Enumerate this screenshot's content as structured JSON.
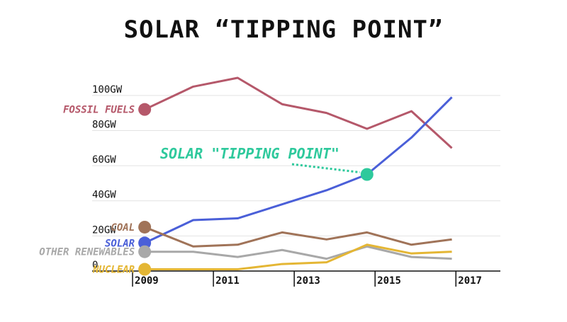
{
  "chart_data": {
    "type": "line",
    "title": "SOLAR “TIPPING POINT”",
    "x": [
      2009,
      2010,
      2011,
      2012,
      2013,
      2014,
      2015,
      2016,
      2017
    ],
    "x_tick_labels": [
      "2009",
      "2011",
      "2013",
      "2015",
      "2017"
    ],
    "x_tick_values": [
      2009,
      2011,
      2013,
      2015,
      2017
    ],
    "y_tick_labels": [
      "0",
      "20GW",
      "40GW",
      "60GW",
      "80GW",
      "100GW"
    ],
    "y_tick_values": [
      0,
      20,
      40,
      60,
      80,
      100
    ],
    "xlim": [
      2008,
      2018.1
    ],
    "ylim": [
      0,
      110
    ],
    "grid": true,
    "series": [
      {
        "name": "FOSSIL FUELS",
        "color": "#b5586a",
        "values": [
          92,
          105,
          110,
          95,
          90,
          81,
          91,
          70
        ],
        "x": [
          2009.3,
          2010.5,
          2011.6,
          2012.7,
          2013.8,
          2014.8,
          2015.9,
          2016.9
        ]
      },
      {
        "name": "SOLAR",
        "color": "#4a5fd8",
        "values": [
          16,
          29,
          30,
          38,
          46,
          55,
          76,
          99
        ],
        "x": [
          2009.3,
          2010.5,
          2011.6,
          2012.7,
          2013.8,
          2014.8,
          2015.9,
          2016.9
        ]
      },
      {
        "name": "COAL",
        "color": "#a07358",
        "values": [
          25,
          14,
          15,
          22,
          18,
          22,
          15,
          18
        ],
        "x": [
          2009.3,
          2010.5,
          2011.6,
          2012.7,
          2013.8,
          2014.8,
          2015.9,
          2016.9
        ]
      },
      {
        "name": "OTHER RENEWABLES",
        "color": "#a8a8a8",
        "values": [
          11,
          11,
          8,
          12,
          7,
          14,
          8,
          7
        ],
        "x": [
          2009.3,
          2010.5,
          2011.6,
          2012.7,
          2013.8,
          2014.8,
          2015.9,
          2016.9
        ]
      },
      {
        "name": "NUCLEAR",
        "color": "#e4b634",
        "values": [
          1,
          1,
          1,
          4,
          5,
          15,
          10,
          11
        ],
        "x": [
          2009.3,
          2010.5,
          2011.6,
          2012.7,
          2013.8,
          2014.8,
          2015.9,
          2016.9
        ]
      }
    ],
    "annotation": {
      "text": "SOLAR \"TIPPING POINT\"",
      "color": "#2ec99c",
      "point": {
        "x": 2014.8,
        "y": 55
      }
    }
  }
}
